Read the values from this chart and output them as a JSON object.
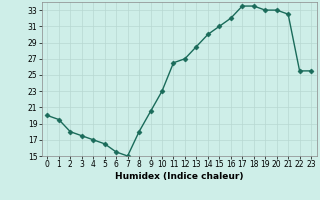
{
  "xlabel": "Humidex (Indice chaleur)",
  "x": [
    0,
    1,
    2,
    3,
    4,
    5,
    6,
    7,
    8,
    9,
    10,
    11,
    12,
    13,
    14,
    15,
    16,
    17,
    18,
    19,
    20,
    21,
    22,
    23
  ],
  "y": [
    20.0,
    19.5,
    18.0,
    17.5,
    17.0,
    16.5,
    15.5,
    15.0,
    18.0,
    20.5,
    23.0,
    26.5,
    27.0,
    28.5,
    30.0,
    31.0,
    32.0,
    33.5,
    33.5,
    33.0,
    33.0,
    32.5,
    25.5,
    25.5
  ],
  "line_color": "#1a6b5a",
  "marker": "D",
  "markersize": 2.5,
  "bg_color": "#ceeee8",
  "grid_color": "#b8d8d2",
  "ylim": [
    15,
    34
  ],
  "yticks": [
    15,
    17,
    19,
    21,
    23,
    25,
    27,
    29,
    31,
    33
  ],
  "xlim": [
    -0.5,
    23.5
  ],
  "xticks": [
    0,
    1,
    2,
    3,
    4,
    5,
    6,
    7,
    8,
    9,
    10,
    11,
    12,
    13,
    14,
    15,
    16,
    17,
    18,
    19,
    20,
    21,
    22,
    23
  ],
  "tick_fontsize": 5.5,
  "label_fontsize": 6.5,
  "linewidth": 1.0
}
